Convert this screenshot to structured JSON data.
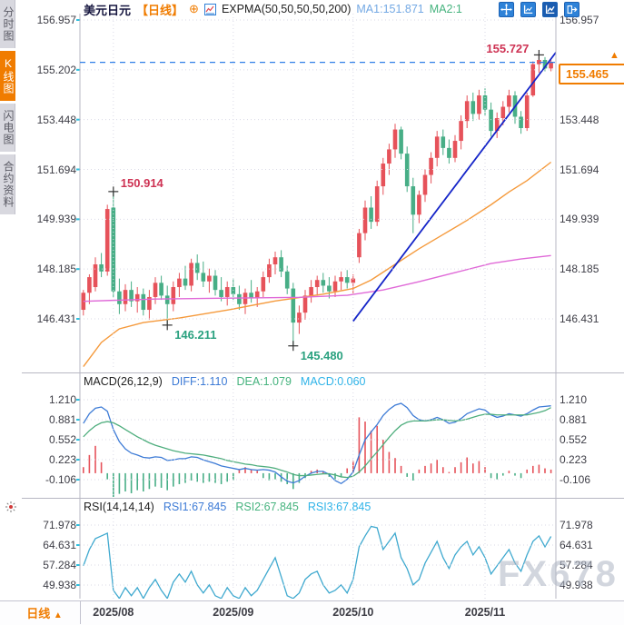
{
  "header": {
    "symbol": "美元日元",
    "period": "【日线】",
    "plus_icon": "⊕",
    "indicator": "EXPMA(50,50,50,50,200)",
    "ma1": "MA1:151.871",
    "ma2": "MA2:1"
  },
  "sidebar": {
    "tabs": [
      {
        "label": "分时图",
        "active": false
      },
      {
        "label": "K线图",
        "active": true
      },
      {
        "label": "闪电图",
        "active": false
      },
      {
        "label": "合约资料",
        "active": false
      }
    ]
  },
  "toolbar": {
    "icons": [
      "pan-icon",
      "axis-scale-icon",
      "axis-scale-active-icon",
      "detach-window-icon"
    ]
  },
  "bottom_bar": {
    "period_label": "日线",
    "period_arrow": "▲",
    "dates": [
      "2025/08",
      "2025/09",
      "2025/10",
      "2025/11"
    ]
  },
  "price_box": {
    "value": "155.465",
    "arrow": "▲"
  },
  "watermark": "FX678",
  "colors": {
    "up": "#e6525a",
    "down": "#47ae86",
    "label_up": "#ce3354",
    "label_down": "#2aa17f",
    "accent": "#f07c00",
    "diff_line": "#3d7bd6",
    "dea_line": "#4fae7e",
    "rsi_line": "#3fa9cf",
    "trend_line": "#1525c8",
    "dashed_line": "#2f7fe8",
    "ma_orange": "#f59a3c",
    "ma_magenta": "#e06ad8",
    "grid": "#dadae6",
    "border": "#b7b7c3",
    "tick": "#2ec0df",
    "cross": "#333333"
  },
  "chart_data": [
    {
      "type": "candlestick",
      "title": "USD/JPY 美元日元 日线",
      "y_ticks": [
        156.957,
        155.202,
        153.448,
        151.694,
        149.939,
        148.185,
        146.431
      ],
      "ylim": [
        145.2,
        157.2
      ],
      "x_month_indices": [
        5,
        25,
        45,
        67
      ],
      "x_month_labels": [
        "2025/08",
        "2025/09",
        "2025/10",
        "2025/11"
      ],
      "last_price": 155.465,
      "dashed_level": 155.465,
      "candles": [
        [
          146.75,
          147.45,
          146.55,
          147.35
        ],
        [
          147.35,
          148.0,
          146.95,
          147.9
        ],
        [
          147.55,
          148.6,
          147.4,
          148.35
        ],
        [
          148.35,
          148.75,
          147.9,
          148.1
        ],
        [
          148.1,
          150.45,
          147.95,
          150.3
        ],
        [
          150.35,
          150.914,
          147.2,
          147.4
        ],
        [
          147.4,
          147.85,
          146.6,
          146.95
        ],
        [
          146.95,
          147.65,
          146.7,
          147.45
        ],
        [
          147.45,
          147.75,
          146.85,
          147.05
        ],
        [
          147.05,
          147.55,
          146.65,
          147.3
        ],
        [
          147.3,
          147.5,
          146.55,
          146.75
        ],
        [
          146.75,
          147.45,
          146.4,
          147.2
        ],
        [
          147.2,
          147.9,
          146.95,
          147.7
        ],
        [
          147.7,
          147.95,
          147.1,
          147.25
        ],
        [
          147.25,
          147.6,
          146.211,
          146.95
        ],
        [
          146.95,
          147.75,
          146.7,
          147.55
        ],
        [
          147.55,
          148.05,
          147.2,
          147.85
        ],
        [
          147.85,
          148.3,
          147.45,
          147.6
        ],
        [
          147.6,
          148.55,
          147.4,
          148.4
        ],
        [
          148.4,
          148.7,
          147.8,
          148.05
        ],
        [
          148.05,
          148.45,
          147.55,
          147.75
        ],
        [
          147.75,
          148.2,
          147.35,
          147.95
        ],
        [
          147.95,
          148.15,
          147.25,
          147.45
        ],
        [
          147.45,
          147.9,
          147.05,
          147.2
        ],
        [
          147.2,
          147.75,
          146.9,
          147.55
        ],
        [
          147.55,
          147.85,
          147.1,
          147.3
        ],
        [
          147.3,
          147.6,
          146.75,
          146.95
        ],
        [
          146.95,
          147.5,
          146.6,
          147.35
        ],
        [
          147.35,
          147.8,
          147.0,
          147.15
        ],
        [
          147.15,
          147.55,
          146.85,
          147.4
        ],
        [
          147.4,
          148.1,
          147.2,
          147.9
        ],
        [
          147.9,
          148.55,
          147.7,
          148.35
        ],
        [
          148.35,
          148.8,
          148.0,
          148.6
        ],
        [
          148.6,
          148.85,
          147.9,
          148.1
        ],
        [
          148.1,
          148.3,
          147.3,
          147.5
        ],
        [
          147.5,
          147.7,
          145.48,
          146.3
        ],
        [
          146.3,
          146.9,
          145.9,
          146.65
        ],
        [
          146.65,
          147.45,
          146.4,
          147.25
        ],
        [
          147.25,
          147.8,
          147.0,
          147.55
        ],
        [
          147.55,
          147.95,
          147.25,
          147.8
        ],
        [
          147.8,
          148.05,
          147.35,
          147.6
        ],
        [
          147.6,
          147.9,
          147.15,
          147.4
        ],
        [
          147.4,
          147.95,
          147.2,
          147.75
        ],
        [
          147.75,
          148.1,
          147.45,
          147.9
        ],
        [
          147.9,
          148.15,
          147.5,
          147.7
        ],
        [
          147.7,
          148.0,
          147.3,
          147.85
        ],
        [
          148.6,
          149.6,
          148.4,
          149.45
        ],
        [
          149.45,
          150.6,
          149.2,
          150.35
        ],
        [
          150.35,
          150.75,
          149.6,
          149.85
        ],
        [
          149.85,
          151.3,
          149.7,
          151.1
        ],
        [
          151.1,
          152.1,
          150.8,
          151.9
        ],
        [
          151.9,
          152.6,
          151.5,
          152.4
        ],
        [
          152.4,
          153.3,
          152.1,
          153.1
        ],
        [
          153.1,
          153.2,
          152.05,
          152.25
        ],
        [
          152.25,
          152.5,
          150.9,
          151.1
        ],
        [
          151.1,
          151.4,
          149.45,
          150.1
        ],
        [
          150.1,
          150.95,
          149.8,
          150.8
        ],
        [
          150.8,
          151.7,
          150.55,
          151.5
        ],
        [
          151.5,
          152.3,
          151.2,
          152.1
        ],
        [
          152.1,
          153.05,
          151.8,
          152.85
        ],
        [
          152.85,
          153.1,
          152.2,
          152.45
        ],
        [
          152.45,
          152.75,
          151.9,
          152.1
        ],
        [
          152.1,
          152.9,
          151.95,
          152.7
        ],
        [
          152.7,
          153.6,
          152.4,
          153.4
        ],
        [
          153.4,
          154.3,
          153.15,
          154.1
        ],
        [
          154.1,
          154.4,
          153.4,
          153.65
        ],
        [
          153.65,
          154.5,
          153.45,
          154.3
        ],
        [
          154.3,
          154.55,
          153.6,
          153.8
        ],
        [
          153.8,
          154.05,
          152.85,
          153.05
        ],
        [
          153.05,
          153.7,
          152.8,
          153.5
        ],
        [
          153.5,
          154.1,
          153.25,
          153.9
        ],
        [
          153.9,
          154.5,
          153.7,
          154.3
        ],
        [
          154.3,
          154.45,
          153.3,
          153.55
        ],
        [
          153.55,
          153.75,
          152.95,
          153.15
        ],
        [
          153.15,
          154.4,
          153.05,
          154.3
        ],
        [
          154.3,
          155.5,
          154.25,
          155.4
        ],
        [
          155.4,
          155.727,
          155.1,
          155.55
        ],
        [
          155.55,
          155.65,
          155.15,
          155.25
        ],
        [
          155.25,
          155.6,
          155.15,
          155.465
        ]
      ],
      "ma_orange_points": [
        [
          0,
          144.75
        ],
        [
          3,
          145.6
        ],
        [
          6,
          146.08
        ],
        [
          10,
          146.3
        ],
        [
          16,
          146.46
        ],
        [
          24,
          146.74
        ],
        [
          32,
          147.06
        ],
        [
          40,
          147.3
        ],
        [
          45,
          147.5
        ],
        [
          48,
          147.8
        ],
        [
          52,
          148.35
        ],
        [
          56,
          148.9
        ],
        [
          60,
          149.4
        ],
        [
          64,
          149.9
        ],
        [
          68,
          150.45
        ],
        [
          71,
          150.9
        ],
        [
          74,
          151.3
        ],
        [
          78,
          151.95
        ]
      ],
      "ma_magenta_points": [
        [
          0,
          147.05
        ],
        [
          12,
          147.13
        ],
        [
          24,
          147.16
        ],
        [
          36,
          147.19
        ],
        [
          44,
          147.26
        ],
        [
          50,
          147.45
        ],
        [
          56,
          147.74
        ],
        [
          62,
          148.06
        ],
        [
          68,
          148.38
        ],
        [
          73,
          148.54
        ],
        [
          78,
          148.66
        ]
      ],
      "trendline": {
        "i1": 45,
        "p1": 146.35,
        "i2": 79.3,
        "p2": 155.95
      },
      "annotations": [
        {
          "label": "150.914",
          "index": 5,
          "at": "high",
          "side": "right",
          "tone": "up"
        },
        {
          "label": "146.211",
          "index": 14,
          "at": "low",
          "side": "right",
          "tone": "down"
        },
        {
          "label": "145.480",
          "index": 35,
          "at": "low",
          "side": "right",
          "tone": "down"
        },
        {
          "label": "155.727",
          "index": 76,
          "at": "high",
          "side": "left",
          "tone": "up"
        }
      ]
    },
    {
      "type": "macd",
      "label": "MACD(26,12,9)",
      "diff_label": "DIFF:1.110",
      "dea_label": "DEA:1.079",
      "macd_label": "MACD:0.060",
      "y_ticks": [
        1.21,
        0.881,
        0.552,
        0.223,
        -0.106
      ],
      "diff": [
        0.82,
        0.98,
        1.07,
        1.09,
        1.02,
        0.72,
        0.52,
        0.4,
        0.33,
        0.3,
        0.26,
        0.25,
        0.27,
        0.26,
        0.21,
        0.22,
        0.24,
        0.24,
        0.27,
        0.26,
        0.22,
        0.19,
        0.16,
        0.12,
        0.1,
        0.08,
        0.06,
        0.08,
        0.06,
        0.05,
        0.06,
        0.05,
        0.02,
        -0.06,
        -0.13,
        -0.16,
        -0.12,
        -0.05,
        0.0,
        0.03,
        0.03,
        -0.02,
        -0.12,
        -0.17,
        -0.1,
        0.02,
        0.3,
        0.55,
        0.68,
        0.8,
        0.95,
        1.05,
        1.12,
        1.15,
        1.08,
        0.95,
        0.88,
        0.86,
        0.88,
        0.92,
        0.88,
        0.82,
        0.84,
        0.9,
        0.98,
        1.02,
        1.06,
        1.04,
        0.96,
        0.92,
        0.94,
        0.98,
        0.96,
        0.94,
        0.98,
        1.04,
        1.09,
        1.1,
        1.11
      ],
      "dea": [
        0.6,
        0.7,
        0.78,
        0.83,
        0.85,
        0.83,
        0.78,
        0.72,
        0.66,
        0.6,
        0.55,
        0.5,
        0.46,
        0.43,
        0.4,
        0.37,
        0.35,
        0.33,
        0.32,
        0.31,
        0.3,
        0.28,
        0.26,
        0.24,
        0.21,
        0.19,
        0.17,
        0.15,
        0.14,
        0.12,
        0.11,
        0.1,
        0.08,
        0.05,
        0.02,
        -0.02,
        -0.04,
        -0.04,
        -0.03,
        -0.02,
        -0.01,
        -0.01,
        -0.03,
        -0.06,
        -0.07,
        -0.05,
        0.02,
        0.12,
        0.24,
        0.35,
        0.47,
        0.59,
        0.7,
        0.79,
        0.84,
        0.86,
        0.86,
        0.86,
        0.87,
        0.88,
        0.88,
        0.87,
        0.86,
        0.87,
        0.89,
        0.92,
        0.95,
        0.97,
        0.97,
        0.96,
        0.96,
        0.96,
        0.96,
        0.96,
        0.96,
        0.98,
        1.0,
        1.03,
        1.08
      ],
      "hist": [
        0.1,
        0.3,
        0.45,
        0.18,
        -0.1,
        -0.39,
        -0.34,
        -0.3,
        -0.33,
        -0.28,
        -0.3,
        -0.26,
        -0.22,
        -0.24,
        -0.28,
        -0.22,
        -0.18,
        -0.16,
        -0.12,
        -0.14,
        -0.16,
        -0.14,
        -0.16,
        -0.18,
        -0.14,
        -0.12,
        0.06,
        0.1,
        0.06,
        0.04,
        -0.08,
        -0.12,
        -0.1,
        -0.14,
        -0.18,
        -0.26,
        -0.16,
        -0.08,
        0.04,
        0.06,
        0.02,
        -0.06,
        -0.1,
        -0.06,
        0.08,
        0.2,
        0.92,
        0.85,
        0.7,
        0.78,
        0.55,
        0.35,
        0.25,
        0.12,
        -0.06,
        -0.12,
        0.06,
        0.12,
        0.16,
        0.22,
        0.1,
        0.02,
        0.1,
        0.18,
        0.26,
        0.16,
        0.2,
        0.1,
        -0.08,
        -0.1,
        -0.04,
        0.04,
        -0.04,
        -0.08,
        0.06,
        0.12,
        0.14,
        0.08,
        0.06
      ]
    },
    {
      "type": "rsi",
      "label": "RSI(14,14,14)",
      "rsi1_label": "RSI1:67.845",
      "rsi2_label": "RSI2:67.845",
      "rsi3_label": "RSI3:67.845",
      "y_ticks": [
        71.978,
        64.631,
        57.284,
        49.938
      ],
      "rsi": [
        57,
        63,
        67,
        68,
        69,
        48,
        45,
        49,
        46,
        49,
        45,
        49,
        52,
        48,
        45,
        51,
        54,
        51,
        55,
        50,
        47,
        50,
        46,
        45,
        49,
        46,
        45,
        49,
        46,
        48,
        52,
        56,
        60,
        53,
        46,
        45,
        47,
        52,
        54,
        55,
        50,
        47,
        48,
        50,
        47,
        52,
        64,
        68,
        71.5,
        71,
        63,
        66,
        69,
        60,
        56,
        50,
        52,
        58,
        62,
        66,
        60,
        56,
        61,
        64,
        66,
        61,
        64,
        60,
        54,
        57,
        60,
        63,
        58,
        55,
        61,
        66,
        68,
        64,
        67.8
      ]
    }
  ]
}
